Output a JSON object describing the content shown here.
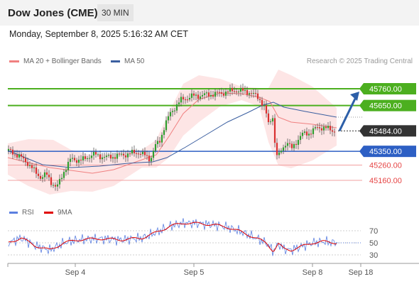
{
  "header": {
    "title": "Dow Jones (CME)",
    "timeframe": "30 MIN"
  },
  "datetime": "Monday, September 8, 2025 5:16:32 AM CET",
  "legend": {
    "ma20": "MA 20 + Bollinger Bands",
    "ma50": "MA 50",
    "credit": "Research © 2025 Trading Central",
    "rsi": "RSI",
    "ma9": "9MA"
  },
  "colors": {
    "ma20": "#f08080",
    "ma50": "#3b5fa0",
    "bollinger_fill": "#fde0e0",
    "resistance": "#4caf1f",
    "support": "#2d5fc4",
    "target_red": "#e64545",
    "current": "#333333",
    "candle_up": "#2e9e2e",
    "candle_down": "#d93030",
    "arrow": "#2d5fa8",
    "rsi": "#5b7fe0",
    "rsi_ma": "#e00000"
  },
  "chart_data": [
    {
      "type": "candlestick",
      "x_tick_labels": [
        "Sep 4",
        "Sep 5",
        "Sep 8",
        "Sep 18"
      ],
      "levels": [
        {
          "label": "45760.00",
          "value": 45760,
          "kind": "resistance"
        },
        {
          "label": "45650.00",
          "value": 45650,
          "kind": "resistance"
        },
        {
          "label": "45484.00",
          "value": 45484,
          "kind": "current"
        },
        {
          "label": "45350.00",
          "value": 45350,
          "kind": "support"
        },
        {
          "label": "45260.00",
          "value": 45260,
          "kind": "target"
        },
        {
          "label": "45160.00",
          "value": 45160,
          "kind": "target"
        }
      ],
      "forecast": {
        "from": 45484,
        "to": 45760
      }
    },
    {
      "type": "line",
      "series": [
        {
          "name": "RSI"
        },
        {
          "name": "9MA"
        }
      ],
      "y_tick_labels": [
        "70",
        "50",
        "30"
      ],
      "y_ticks": [
        70,
        50,
        30
      ]
    }
  ]
}
